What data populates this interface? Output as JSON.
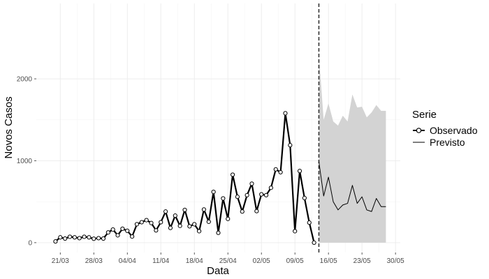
{
  "chart_data": {
    "type": "line",
    "xlabel": "Data",
    "ylabel": "Novos Casos",
    "x_axis_type": "date",
    "xlim": [
      "2020-03-16",
      "2020-05-31"
    ],
    "ylim": [
      -120,
      2920
    ],
    "x_ticks": [
      {
        "date": "2020-03-21",
        "label": "21/03"
      },
      {
        "date": "2020-03-28",
        "label": "28/03"
      },
      {
        "date": "2020-04-04",
        "label": "04/04"
      },
      {
        "date": "2020-04-11",
        "label": "11/04"
      },
      {
        "date": "2020-04-18",
        "label": "18/04"
      },
      {
        "date": "2020-04-25",
        "label": "25/04"
      },
      {
        "date": "2020-05-02",
        "label": "02/05"
      },
      {
        "date": "2020-05-09",
        "label": "09/05"
      },
      {
        "date": "2020-05-16",
        "label": "16/05"
      },
      {
        "date": "2020-05-23",
        "label": "23/05"
      },
      {
        "date": "2020-05-30",
        "label": "30/05"
      }
    ],
    "y_ticks": [
      {
        "value": 0,
        "label": "0"
      },
      {
        "value": 1000,
        "label": "1000"
      },
      {
        "value": 2000,
        "label": "2000"
      }
    ],
    "grid": true,
    "forecast_start": "2020-05-14",
    "legend": {
      "title": "Serie",
      "position": "right",
      "entries": [
        {
          "label": "Observado",
          "marker": "circle"
        },
        {
          "label": "Previsto",
          "marker": "none"
        }
      ]
    },
    "colors": {
      "observed": "#000000",
      "predicted": "#000000",
      "interval": "#d3d3d3",
      "cutoff": "#333333"
    },
    "series": [
      {
        "name": "Observado",
        "x": [
          "2020-03-20",
          "2020-03-21",
          "2020-03-22",
          "2020-03-23",
          "2020-03-24",
          "2020-03-25",
          "2020-03-26",
          "2020-03-27",
          "2020-03-28",
          "2020-03-29",
          "2020-03-30",
          "2020-03-31",
          "2020-04-01",
          "2020-04-02",
          "2020-04-03",
          "2020-04-04",
          "2020-04-05",
          "2020-04-06",
          "2020-04-07",
          "2020-04-08",
          "2020-04-09",
          "2020-04-10",
          "2020-04-11",
          "2020-04-12",
          "2020-04-13",
          "2020-04-14",
          "2020-04-15",
          "2020-04-16",
          "2020-04-17",
          "2020-04-18",
          "2020-04-19",
          "2020-04-20",
          "2020-04-21",
          "2020-04-22",
          "2020-04-23",
          "2020-04-24",
          "2020-04-25",
          "2020-04-26",
          "2020-04-27",
          "2020-04-28",
          "2020-04-29",
          "2020-04-30",
          "2020-05-01",
          "2020-05-02",
          "2020-05-03",
          "2020-05-04",
          "2020-05-05",
          "2020-05-06",
          "2020-05-07",
          "2020-05-08",
          "2020-05-09",
          "2020-05-10",
          "2020-05-11",
          "2020-05-12",
          "2020-05-13"
        ],
        "values": [
          15,
          65,
          50,
          72,
          65,
          55,
          72,
          65,
          48,
          55,
          50,
          125,
          160,
          90,
          170,
          145,
          75,
          225,
          250,
          275,
          240,
          150,
          250,
          380,
          180,
          330,
          205,
          400,
          200,
          225,
          140,
          405,
          255,
          620,
          120,
          540,
          290,
          830,
          560,
          380,
          580,
          720,
          385,
          590,
          580,
          670,
          895,
          860,
          1580,
          1190,
          140,
          875,
          545,
          245,
          0
        ]
      },
      {
        "name": "Previsto",
        "x": [
          "2020-05-14",
          "2020-05-15",
          "2020-05-16",
          "2020-05-17",
          "2020-05-18",
          "2020-05-19",
          "2020-05-20",
          "2020-05-21",
          "2020-05-22",
          "2020-05-23",
          "2020-05-24",
          "2020-05-25",
          "2020-05-26",
          "2020-05-27",
          "2020-05-28"
        ],
        "values": [
          990,
          570,
          800,
          500,
          400,
          460,
          480,
          700,
          480,
          560,
          400,
          380,
          540,
          440,
          440
        ],
        "lower": [
          0,
          0,
          0,
          0,
          0,
          0,
          0,
          0,
          0,
          0,
          0,
          0,
          0,
          0,
          0
        ],
        "upper": [
          2300,
          1500,
          1700,
          1480,
          1430,
          1550,
          1480,
          1810,
          1650,
          1660,
          1530,
          1590,
          1680,
          1610,
          1610
        ]
      }
    ]
  }
}
